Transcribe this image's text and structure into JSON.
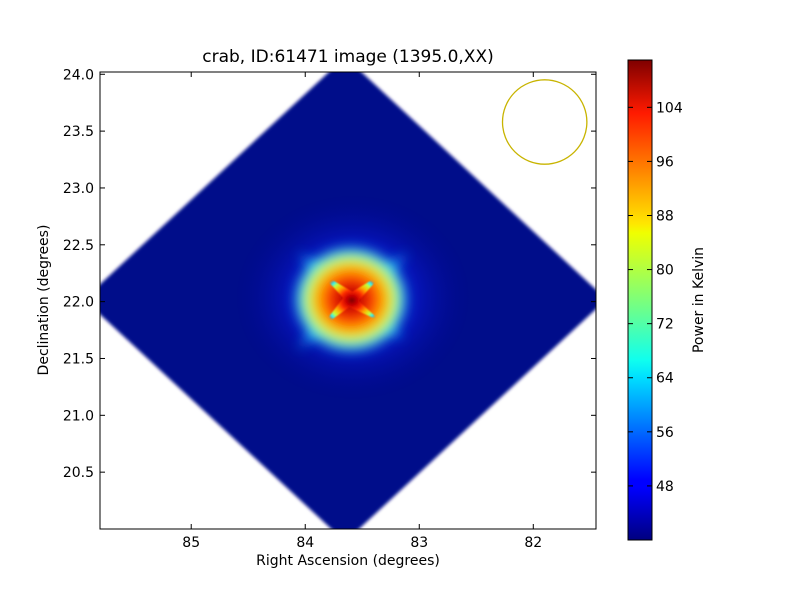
{
  "chart_data": {
    "type": "heatmap",
    "title": "crab, ID:61471 image (1395.0,XX)",
    "xlabel": "Right Ascension (degrees)",
    "ylabel": "Declination (degrees)",
    "xlim": [
      85.8,
      81.45
    ],
    "ylim": [
      20.0,
      24.02
    ],
    "x_inverted": true,
    "xticks": [
      85,
      84,
      83,
      82
    ],
    "xtick_labels": [
      "85",
      "84",
      "83",
      "82"
    ],
    "yticks": [
      20.5,
      21.0,
      21.5,
      22.0,
      22.5,
      23.0,
      23.5,
      24.0
    ],
    "ytick_labels": [
      "20.5",
      "21.0",
      "21.5",
      "22.0",
      "22.5",
      "23.0",
      "23.5",
      "24.0"
    ],
    "colormap": "jet",
    "colorbar": {
      "label": "Power in Kelvin",
      "range": [
        40,
        111
      ],
      "ticks": [
        48,
        56,
        64,
        72,
        80,
        88,
        96,
        104
      ],
      "tick_labels": [
        "48",
        "56",
        "64",
        "72",
        "80",
        "88",
        "96",
        "104"
      ]
    },
    "map_region": {
      "shape": "diamond",
      "center_ra": 83.65,
      "center_dec": 22.02,
      "half_width_ra": 2.15,
      "half_height_dec": 2.0
    },
    "peak": {
      "ra": 83.6,
      "dec": 22.02,
      "value": 111
    },
    "background_value": 42,
    "beam": {
      "shape": "circle",
      "center_ra": 81.9,
      "center_dec": 23.58,
      "radius_deg": 0.37,
      "color": "#c8b400"
    }
  }
}
